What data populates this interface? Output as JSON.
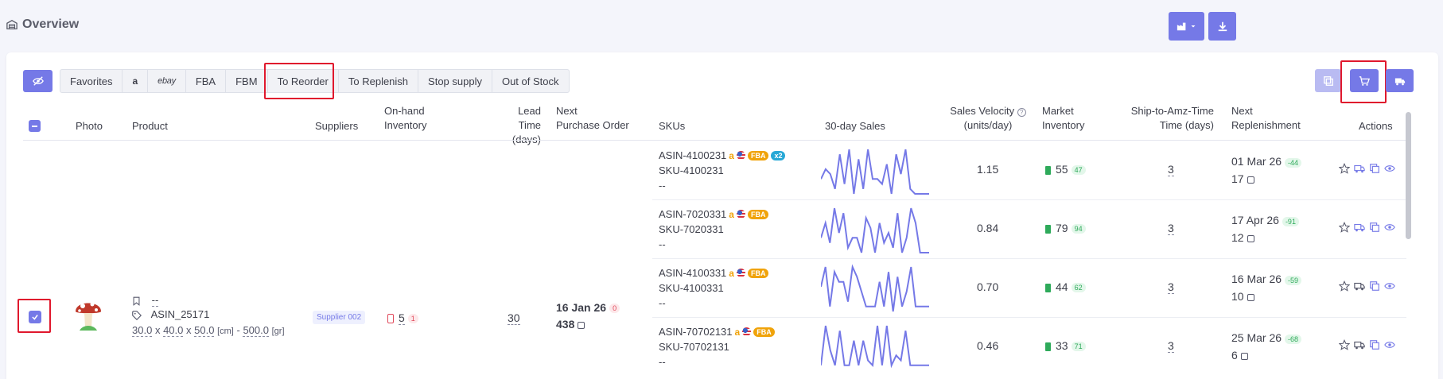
{
  "header": {
    "title": "Overview",
    "warehouse_icon": "warehouse-icon",
    "warehouse_button_icon": "factory-icon",
    "download_button_icon": "download-icon"
  },
  "toolbar": {
    "hide_button_icon": "eye-slash-icon",
    "tabs": [
      {
        "label": "Favorites"
      },
      {
        "label": "a"
      },
      {
        "label": "ebay"
      },
      {
        "label": "FBA"
      },
      {
        "label": "FBM"
      },
      {
        "label": "To Reorder"
      },
      {
        "label": "To Replenish"
      },
      {
        "label": "Stop supply"
      },
      {
        "label": "Out of Stock"
      }
    ],
    "right_buttons": [
      "copy-icon",
      "cart-icon",
      "truck-icon"
    ]
  },
  "columns": {
    "photo": "Photo",
    "product": "Product",
    "suppliers": "Suppliers",
    "onhand_1": "On-hand",
    "onhand_2": "Inventory",
    "lead_1": "Lead",
    "lead_2": "Time (days)",
    "next_po_1": "Next",
    "next_po_2": "Purchase Order",
    "skus": "SKUs",
    "sales30": "30-day Sales",
    "velocity_1": "Sales Velocity",
    "velocity_2": "(units/day)",
    "market_1": "Market",
    "market_2": "Inventory",
    "ship_1": "Ship-to-Amz-Time",
    "ship_2": "Time (days)",
    "replen_1": "Next",
    "replen_2": "Replenishment",
    "actions": "Actions"
  },
  "product": {
    "bookmark_value": "--",
    "asin": "ASIN_25171",
    "dim_l": "30.0",
    "dim_w": "40.0",
    "dim_h": "50.0",
    "dim_unit": "[cm]",
    "weight_sep": "-",
    "weight": "500.0",
    "weight_unit": "[gr]",
    "x1": "x",
    "x2": "x",
    "supplier": "Supplier 002",
    "onhand": "5",
    "onhand_badge": "1",
    "lead_time": "30",
    "po_date": "16 Jan 26",
    "po_badge": "0",
    "po_qty": "438"
  },
  "skus": [
    {
      "asin": "ASIN-4100231",
      "sku": "SKU-4100231",
      "extra": "--",
      "fba": "FBA",
      "multi": "x2",
      "velocity": "1.15",
      "market": "55",
      "market_badge": "47",
      "ship": "3",
      "replen_date": "01 Mar 26",
      "replen_badge": "-44",
      "replen_qty": "17",
      "sales": [
        3,
        5,
        4,
        1,
        8,
        2,
        9,
        0,
        7,
        1,
        9,
        3,
        3,
        2,
        6,
        0,
        8,
        4,
        9,
        1,
        0,
        0,
        0,
        0
      ]
    },
    {
      "asin": "ASIN-7020331",
      "sku": "SKU-7020331",
      "extra": "--",
      "fba": "FBA",
      "multi": "",
      "velocity": "0.84",
      "market": "79",
      "market_badge": "94",
      "ship": "3",
      "replen_date": "17 Apr 26",
      "replen_badge": "-91",
      "replen_qty": "12",
      "sales": [
        3,
        6,
        2,
        9,
        4,
        8,
        1,
        3,
        3,
        0,
        7,
        5,
        0,
        6,
        2,
        4,
        1,
        8,
        0,
        3,
        9,
        6,
        0,
        0,
        0
      ]
    },
    {
      "asin": "ASIN-4100331",
      "sku": "SKU-4100331",
      "extra": "--",
      "fba": "FBA",
      "multi": "",
      "velocity": "0.70",
      "market": "44",
      "market_badge": "62",
      "ship": "3",
      "replen_date": "16 Mar 26",
      "replen_badge": "-59",
      "replen_qty": "10",
      "sales": [
        5,
        9,
        1,
        8,
        6,
        6,
        2,
        9,
        7,
        4,
        1,
        1,
        1,
        6,
        1,
        8,
        0,
        7,
        1,
        4,
        9,
        1,
        1,
        1,
        1
      ]
    },
    {
      "asin": "ASIN-70702131",
      "sku": "SKU-70702131",
      "extra": "--",
      "fba": "FBA",
      "multi": "",
      "velocity": "0.46",
      "market": "33",
      "market_badge": "71",
      "ship": "3",
      "replen_date": "25 Mar 26",
      "replen_badge": "-68",
      "replen_qty": "6",
      "sales": [
        1,
        9,
        4,
        1,
        8,
        1,
        1,
        6,
        1,
        6,
        2,
        1,
        9,
        1,
        9,
        1,
        3,
        2,
        8,
        1,
        1,
        1,
        1,
        1
      ]
    }
  ],
  "colors": {
    "accent": "#7579e7",
    "highlight": "#e0182d",
    "fba": "#f0a30a",
    "stock_green": "#2eaa5a"
  }
}
